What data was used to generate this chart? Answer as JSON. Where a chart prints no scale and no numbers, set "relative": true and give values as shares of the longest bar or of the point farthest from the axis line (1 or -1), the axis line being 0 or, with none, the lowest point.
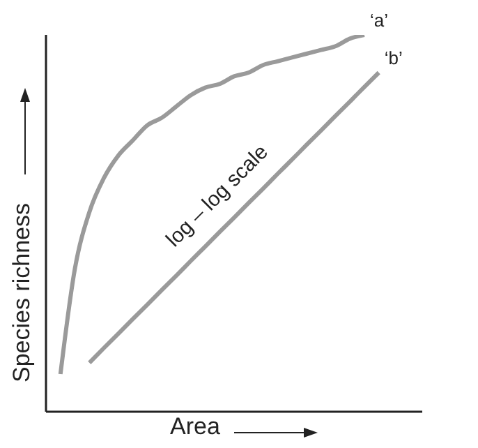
{
  "chart_data": {
    "type": "line",
    "relative": true,
    "xlabel": "Area",
    "ylabel": "Species richness",
    "annotations": [
      "log – log scale"
    ],
    "categories": [
      null,
      null,
      null,
      null,
      null,
      null,
      null,
      null,
      null,
      null,
      null,
      null,
      null,
      null,
      null,
      null,
      null,
      null,
      null,
      null,
      null,
      null,
      null,
      null,
      null,
      null,
      null
    ],
    "series": [
      {
        "name": "‘a’",
        "color": "#9a9a9a",
        "values": [
          null,
          0.1,
          0.38,
          0.53,
          0.62,
          0.68,
          0.72,
          0.76,
          0.78,
          0.81,
          0.84,
          0.86,
          0.87,
          0.89,
          0.9,
          0.92,
          0.93,
          0.94,
          0.95,
          0.96,
          0.97,
          0.99,
          1,
          null,
          null,
          null,
          null
        ]
      },
      {
        "name": "‘b’",
        "color": "#9a9a9a",
        "values": [
          null,
          null,
          null,
          0.13,
          0.169,
          0.207,
          0.246,
          0.284,
          0.323,
          0.361,
          0.4,
          0.438,
          0.477,
          0.515,
          0.554,
          0.592,
          0.631,
          0.669,
          0.708,
          0.746,
          0.785,
          0.823,
          0.862,
          0.9,
          null,
          null,
          null
        ]
      }
    ],
    "grid": false,
    "legend": false,
    "marker": "none"
  }
}
